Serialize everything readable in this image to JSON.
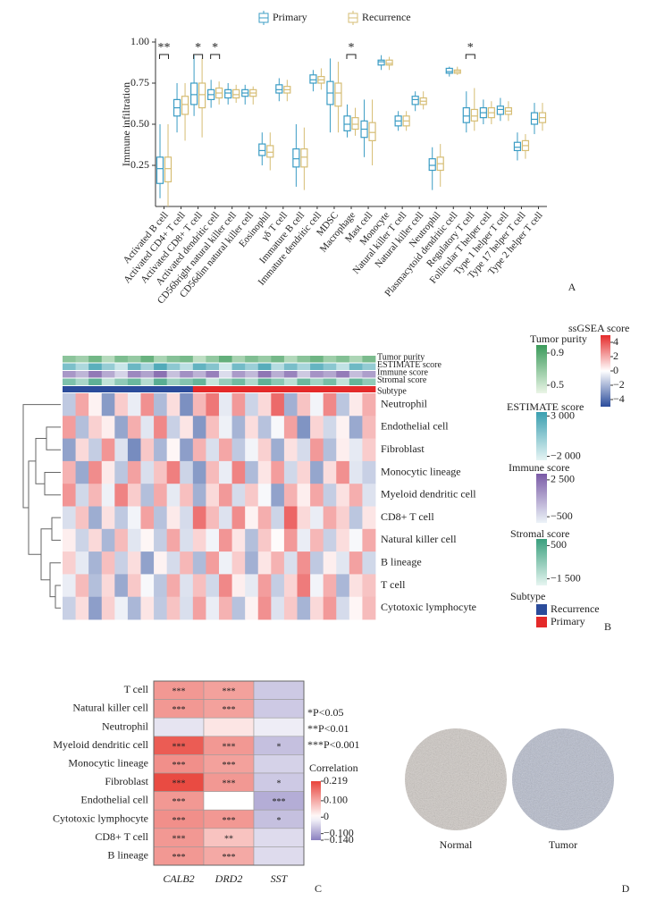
{
  "chart_data": [
    {
      "type": "box",
      "panel_label": "A",
      "ylabel": "Immune infiltration",
      "ylim": [
        0,
        1
      ],
      "yticks": [
        {
          "value": 1,
          "label": "1.00"
        },
        0.75,
        {
          "value": 0.5,
          "label": "0.50"
        },
        0.25
      ],
      "categories": [
        "Activated B cell",
        "Activated CD4+ T cell",
        "Activated CD8+ T cell",
        "Activated dendritic cell",
        "CD56bright natural killer cell",
        "CD56dim natural killer cell",
        "Eosinophil",
        "γδ T cell",
        "Immature B cell",
        "Immature dendritic cell",
        "MDSC",
        "Macrophage",
        "Mast cell",
        "Monocyte",
        "Natural killer T cell",
        "Natural killer cell",
        "Neutrophil",
        "Plasmacytoid dendritic cell",
        "Regulatory T cell",
        "Follicular T helper cell",
        "Type 1 helper T cell",
        "Type 17 helper T cell",
        "Type 2 helper T cell"
      ],
      "series": [
        {
          "name": "Primary",
          "color": "#3b9cc4",
          "values": [
            [
              0.05,
              0.14,
              0.23,
              0.3,
              0.5
            ],
            [
              0.45,
              0.55,
              0.6,
              0.65,
              0.75
            ],
            [
              0.55,
              0.62,
              0.68,
              0.75,
              0.92
            ],
            [
              0.6,
              0.65,
              0.68,
              0.71,
              0.77
            ],
            [
              0.62,
              0.66,
              0.69,
              0.71,
              0.75
            ],
            [
              0.62,
              0.67,
              0.69,
              0.71,
              0.74
            ],
            [
              0.25,
              0.31,
              0.34,
              0.38,
              0.45
            ],
            [
              0.64,
              0.69,
              0.71,
              0.74,
              0.78
            ],
            [
              0.12,
              0.24,
              0.29,
              0.35,
              0.5
            ],
            [
              0.7,
              0.75,
              0.77,
              0.8,
              0.83
            ],
            [
              0.45,
              0.62,
              0.69,
              0.76,
              0.9
            ],
            [
              0.42,
              0.46,
              0.5,
              0.55,
              0.62
            ],
            [
              0.3,
              0.42,
              0.47,
              0.52,
              0.65
            ],
            [
              0.83,
              0.86,
              0.88,
              0.89,
              0.92
            ],
            [
              0.46,
              0.49,
              0.52,
              0.55,
              0.58
            ],
            [
              0.58,
              0.62,
              0.65,
              0.67,
              0.7
            ],
            [
              0.1,
              0.22,
              0.25,
              0.29,
              0.36
            ],
            [
              0.79,
              0.81,
              0.82,
              0.84,
              0.85
            ],
            [
              0.45,
              0.51,
              0.55,
              0.6,
              0.7
            ],
            [
              0.5,
              0.54,
              0.57,
              0.6,
              0.65
            ],
            [
              0.52,
              0.56,
              0.59,
              0.61,
              0.66
            ],
            [
              0.28,
              0.34,
              0.36,
              0.39,
              0.45
            ],
            [
              0.44,
              0.5,
              0.53,
              0.57,
              0.63
            ]
          ]
        },
        {
          "name": "Recurrence",
          "color": "#d6bd74",
          "values": [
            [
              0.0,
              0.15,
              0.23,
              0.3,
              0.5
            ],
            [
              0.4,
              0.56,
              0.62,
              0.67,
              0.75
            ],
            [
              0.42,
              0.6,
              0.68,
              0.75,
              0.9
            ],
            [
              0.62,
              0.66,
              0.69,
              0.72,
              0.76
            ],
            [
              0.63,
              0.66,
              0.68,
              0.71,
              0.74
            ],
            [
              0.62,
              0.67,
              0.69,
              0.71,
              0.73
            ],
            [
              0.22,
              0.3,
              0.33,
              0.37,
              0.45
            ],
            [
              0.64,
              0.69,
              0.71,
              0.73,
              0.77
            ],
            [
              0.1,
              0.24,
              0.3,
              0.35,
              0.48
            ],
            [
              0.71,
              0.75,
              0.77,
              0.79,
              0.84
            ],
            [
              0.45,
              0.61,
              0.69,
              0.75,
              0.88
            ],
            [
              0.43,
              0.47,
              0.5,
              0.54,
              0.6
            ],
            [
              0.25,
              0.4,
              0.45,
              0.51,
              0.65
            ],
            [
              0.83,
              0.86,
              0.87,
              0.89,
              0.91
            ],
            [
              0.46,
              0.49,
              0.52,
              0.55,
              0.58
            ],
            [
              0.59,
              0.62,
              0.64,
              0.66,
              0.7
            ],
            [
              0.12,
              0.22,
              0.26,
              0.3,
              0.38
            ],
            [
              0.8,
              0.81,
              0.82,
              0.83,
              0.85
            ],
            [
              0.46,
              0.52,
              0.55,
              0.59,
              0.72
            ],
            [
              0.5,
              0.54,
              0.57,
              0.6,
              0.64
            ],
            [
              0.52,
              0.56,
              0.58,
              0.6,
              0.64
            ],
            [
              0.29,
              0.34,
              0.37,
              0.4,
              0.44
            ],
            [
              0.46,
              0.51,
              0.54,
              0.57,
              0.63
            ]
          ]
        }
      ],
      "significance": [
        "**",
        null,
        "*",
        "*",
        null,
        null,
        null,
        null,
        null,
        null,
        null,
        "*",
        null,
        null,
        null,
        null,
        null,
        null,
        "*",
        null,
        null,
        null,
        null
      ]
    },
    {
      "type": "heatmap",
      "panel_label": "B",
      "rows": [
        "Neutrophil",
        "Endothelial cell",
        "Fibroblast",
        "Monocytic lineage",
        "Myeloid dendritic cell",
        "CD8+ T cell",
        "Natural killer cell",
        "B lineage",
        "T cell",
        "Cytotoxic lymphocyte"
      ],
      "values": [
        [
          -1.5,
          2.1,
          0.3,
          -2.8,
          1.2,
          -0.5,
          2.6,
          -1.9,
          0.8,
          -3.1,
          1.7,
          3.2,
          -0.6,
          2.4,
          -1.2,
          0.9,
          3.5,
          -2.2,
          1.4,
          -0.3,
          2.8,
          -1.6,
          0.5,
          1.9
        ],
        [
          2.3,
          -1.8,
          1.1,
          0.4,
          -2.5,
          1.9,
          -0.7,
          2.8,
          -1.3,
          0.6,
          -2.9,
          1.5,
          -0.4,
          -2.1,
          0.8,
          -1.7,
          -0.2,
          2.2,
          -3.0,
          1.0,
          -1.1,
          0.3,
          -2.4,
          1.6
        ],
        [
          -2.6,
          0.9,
          -1.4,
          2.5,
          -0.8,
          -3.2,
          1.3,
          -2.0,
          0.2,
          -2.7,
          1.8,
          -0.9,
          2.1,
          -1.5,
          -0.3,
          1.1,
          -2.3,
          0.7,
          -1.0,
          2.4,
          -1.8,
          0.4,
          -0.6,
          1.2
        ],
        [
          1.8,
          -2.4,
          2.7,
          0.5,
          -1.6,
          2.2,
          -0.9,
          1.4,
          3.0,
          -1.2,
          -2.8,
          1.6,
          -0.5,
          2.9,
          -1.9,
          0.6,
          2.3,
          -1.1,
          1.0,
          -2.5,
          0.8,
          2.6,
          -0.7,
          -1.3
        ],
        [
          2.5,
          -1.1,
          1.7,
          -0.4,
          2.9,
          1.2,
          -1.8,
          2.0,
          -0.6,
          1.5,
          -2.2,
          0.9,
          2.4,
          -1.0,
          1.3,
          -0.2,
          -2.6,
          1.8,
          0.4,
          2.1,
          -1.4,
          0.7,
          1.9,
          -0.8
        ],
        [
          -0.9,
          1.4,
          -2.3,
          0.7,
          -1.5,
          -0.3,
          2.2,
          -1.7,
          0.5,
          -1.0,
          3.3,
          1.6,
          -0.8,
          2.7,
          0.3,
          1.9,
          -1.2,
          3.6,
          0.9,
          -0.5,
          2.0,
          1.1,
          -1.6,
          0.6
        ],
        [
          0.4,
          -1.2,
          0.9,
          -2.0,
          1.6,
          -0.7,
          0.2,
          -1.4,
          2.1,
          -0.9,
          1.0,
          -0.3,
          2.5,
          0.6,
          -1.8,
          1.3,
          0.1,
          2.4,
          -0.5,
          1.7,
          -1.3,
          0.8,
          -0.2,
          2.0
        ],
        [
          1.1,
          -0.6,
          -2.1,
          1.5,
          -1.3,
          0.8,
          -2.6,
          0.3,
          -1.0,
          1.7,
          -1.9,
          2.3,
          -0.4,
          1.2,
          -2.2,
          0.6,
          1.8,
          -0.9,
          2.6,
          -1.5,
          0.4,
          -0.7,
          2.2,
          -1.1
        ],
        [
          -0.5,
          1.6,
          -1.8,
          0.9,
          -2.4,
          1.3,
          -0.2,
          -1.6,
          2.0,
          -0.8,
          1.5,
          -1.1,
          2.8,
          0.4,
          -0.6,
          2.3,
          -1.4,
          1.0,
          3.1,
          -0.3,
          1.9,
          -2.0,
          0.7,
          1.4
        ],
        [
          -1.3,
          0.8,
          -2.7,
          1.1,
          -0.4,
          -2.0,
          0.6,
          -1.5,
          1.4,
          -0.9,
          2.2,
          -0.5,
          1.8,
          -1.7,
          0.3,
          2.6,
          -0.8,
          1.3,
          -2.1,
          0.9,
          2.4,
          -1.0,
          0.2,
          1.6
        ]
      ],
      "legend_title": "ssGSEA score",
      "lim": [
        -5,
        5
      ],
      "ticks": [
        4,
        2,
        0,
        {
          "value": -2,
          "label": "−2"
        },
        {
          "value": -4,
          "label": "−4"
        }
      ],
      "colors": [
        "#2b4c9b",
        "#ffffff",
        "#e42a2a"
      ],
      "tracks": [
        {
          "name": "Tumor purity",
          "lim": [
            0.4,
            1
          ],
          "ticks": [
            0.9,
            0.5
          ],
          "colors": [
            "#eaf5e6",
            "#3a9a5a"
          ],
          "values": [
            0.72,
            0.65,
            0.81,
            0.58,
            0.77,
            0.69,
            0.84,
            0.62,
            0.74,
            0.79,
            0.55,
            0.7,
            0.86,
            0.63,
            0.76,
            0.68,
            0.8,
            0.59,
            0.73,
            0.82,
            0.66,
            0.75,
            0.61,
            0.78
          ]
        },
        {
          "name": "ESTIMATE score",
          "lim": [
            -2500,
            3500
          ],
          "ticks": [
            {
              "value": 3000,
              "label": "3 000"
            },
            {
              "value": -2000,
              "label": "−2 000"
            }
          ],
          "colors": [
            "#e6f4f4",
            "#3a9fb0"
          ],
          "values": [
            1200,
            -500,
            2400,
            300,
            -1500,
            1800,
            -200,
            2700,
            600,
            -1000,
            2100,
            900,
            -1700,
            1500,
            100,
            2500,
            -800,
            1300,
            -300,
            2000,
            700,
            -1200,
            1700,
            400
          ]
        },
        {
          "name": "Immune score",
          "lim": [
            -1000,
            3000
          ],
          "ticks": [
            {
              "value": 2500,
              "label": "2 500"
            },
            {
              "value": -500,
              "label": "−500"
            }
          ],
          "colors": [
            "#ecf3f8",
            "#7a5aa6"
          ],
          "values": [
            1400,
            600,
            2200,
            900,
            -200,
            1800,
            1100,
            2400,
            300,
            1600,
            700,
            2000,
            -400,
            1300,
            500,
            2300,
            800,
            1900,
            100,
            1500,
            1000,
            2100,
            400,
            1200
          ]
        },
        {
          "name": "Stromal score",
          "lim": [
            -1900,
            900
          ],
          "ticks": [
            500,
            {
              "value": -1500,
              "label": "−1 500"
            }
          ],
          "colors": [
            "#e6f5f1",
            "#3a9f7d"
          ],
          "values": [
            -200,
            -900,
            300,
            -1300,
            -500,
            100,
            -1100,
            400,
            -700,
            -300,
            200,
            -1400,
            -600,
            0,
            -1000,
            300,
            -400,
            -1200,
            100,
            -800,
            -100,
            -1300,
            200,
            -500
          ]
        }
      ],
      "subtype": {
        "name": "Subtype",
        "categories": [
          "Recurrence",
          "Primary"
        ],
        "colors": [
          "#2b4c9b",
          "#e42a2a"
        ],
        "values": [
          "Recurrence",
          "Recurrence",
          "Recurrence",
          "Recurrence",
          "Recurrence",
          "Recurrence",
          "Recurrence",
          "Recurrence",
          "Recurrence",
          "Recurrence",
          "Primary",
          "Primary",
          "Primary",
          "Primary",
          "Primary",
          "Primary",
          "Primary",
          "Primary",
          "Primary",
          "Primary",
          "Primary",
          "Primary",
          "Primary",
          "Primary"
        ]
      }
    },
    {
      "type": "heatmap",
      "panel_label": "C",
      "rows": [
        "T cell",
        "Natural killer cell",
        "Neutrophil",
        "Myeloid dendritic cell",
        "Monocytic lineage",
        "Fibroblast",
        "Endothelial cell",
        "Cytotoxic lymphocyte",
        "CD8+ T cell",
        "B lineage"
      ],
      "columns": [
        "CALB2",
        "DRD2",
        "SST"
      ],
      "values": [
        [
          0.12,
          0.11,
          -0.06
        ],
        [
          0.12,
          0.11,
          -0.06
        ],
        [
          -0.03,
          0.03,
          -0.02
        ],
        [
          0.19,
          0.12,
          -0.07
        ],
        [
          0.13,
          0.11,
          -0.05
        ],
        [
          0.21,
          0.12,
          -0.06
        ],
        [
          0.12,
          0.0,
          -0.09
        ],
        [
          0.13,
          0.12,
          -0.07
        ],
        [
          0.12,
          0.07,
          -0.04
        ],
        [
          0.12,
          0.1,
          -0.04
        ]
      ],
      "significance": [
        [
          "***",
          "***",
          null
        ],
        [
          "***",
          "***",
          null
        ],
        [
          null,
          null,
          null
        ],
        [
          "***",
          "***",
          "*"
        ],
        [
          "***",
          "***",
          null
        ],
        [
          "***",
          "***",
          "*"
        ],
        [
          "***",
          null,
          "***"
        ],
        [
          "***",
          "***",
          "*"
        ],
        [
          "***",
          "**",
          null
        ],
        [
          "***",
          "***",
          null
        ]
      ],
      "notes": [
        "*P<0.05",
        "**P<0.01",
        "***P<0.001"
      ],
      "legend_title": "Correlation",
      "lim": [
        -0.14,
        0.219
      ],
      "ticks": [
        0.219,
        {
          "value": 0.1,
          "label": "0.100"
        },
        0,
        {
          "value": -0.1,
          "label": "−0.100"
        },
        {
          "value": -0.14,
          "label": "−0.140"
        }
      ],
      "colors": [
        "#8a80bf",
        "#ffffff",
        "#e8433a"
      ]
    }
  ],
  "image_panel": {
    "panel_label": "D",
    "labels": [
      "Normal",
      "Tumor"
    ]
  }
}
